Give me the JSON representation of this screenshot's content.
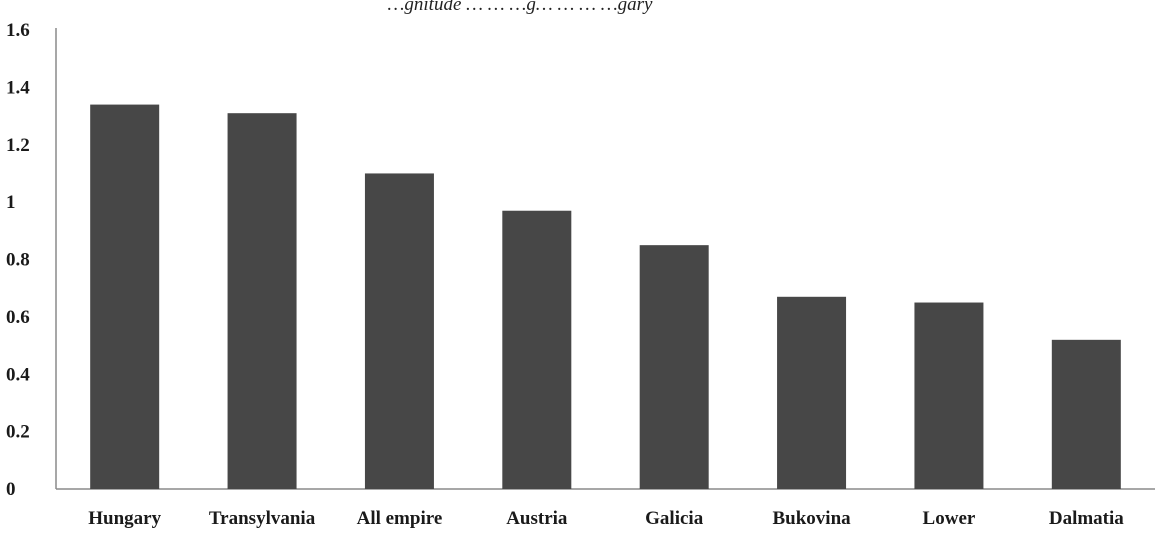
{
  "chart_data": {
    "type": "bar",
    "title": "",
    "title_partial": "…gnitude … … …g… … … …gary",
    "xlabel": "",
    "ylabel": "",
    "categories": [
      "Hungary",
      "Transylvania",
      "All empire",
      "Austria",
      "Galicia",
      "Bukovina",
      "Lower",
      "Dalmatia"
    ],
    "values": [
      1.34,
      1.31,
      1.1,
      0.97,
      0.85,
      0.67,
      0.65,
      0.52
    ],
    "ylim": [
      0,
      1.6
    ],
    "yticks": [
      "0",
      "0.2",
      "0.4",
      "0.6",
      "0.8",
      "1",
      "1.2",
      "1.4",
      "1.6"
    ],
    "bar_color": "#474747",
    "axis_color": "#8a8a8a",
    "grid": false,
    "legend": "none"
  }
}
